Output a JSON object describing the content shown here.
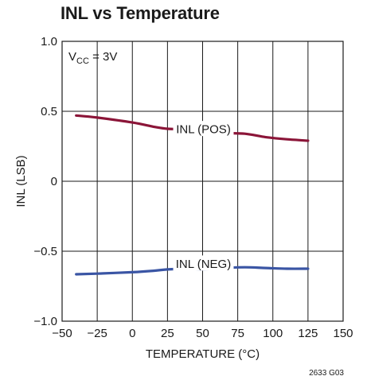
{
  "chart_data": {
    "type": "line",
    "title": "INL vs Temperature",
    "xlabel": "TEMPERATURE (°C)",
    "ylabel": "INL (LSB)",
    "xlim": [
      -50,
      150
    ],
    "ylim": [
      -1.0,
      1.0
    ],
    "x_ticks": [
      "−50",
      "−25",
      "0",
      "25",
      "50",
      "75",
      "100",
      "125",
      "150"
    ],
    "y_ticks": [
      "1.0",
      "0.5",
      "0",
      "−0.5",
      "−1.0"
    ],
    "grid": true,
    "condition": {
      "main": "V",
      "sub": "CC",
      "rest": " = 3V"
    },
    "figure_id": "2633 G03",
    "series": [
      {
        "name": "INL (POS)",
        "color": "#8b1538",
        "x": [
          -40,
          -25,
          0,
          15,
          25,
          40,
          50,
          65,
          80,
          95,
          110,
          125
        ],
        "y": [
          0.47,
          0.455,
          0.42,
          0.39,
          0.375,
          0.37,
          0.36,
          0.345,
          0.34,
          0.315,
          0.3,
          0.29
        ]
      },
      {
        "name": "INL (NEG)",
        "color": "#3a55a4",
        "x": [
          -40,
          -25,
          0,
          15,
          25,
          40,
          50,
          65,
          80,
          95,
          110,
          125
        ],
        "y": [
          -0.665,
          -0.66,
          -0.65,
          -0.64,
          -0.63,
          -0.625,
          -0.63,
          -0.62,
          -0.615,
          -0.62,
          -0.625,
          -0.625
        ]
      }
    ]
  }
}
